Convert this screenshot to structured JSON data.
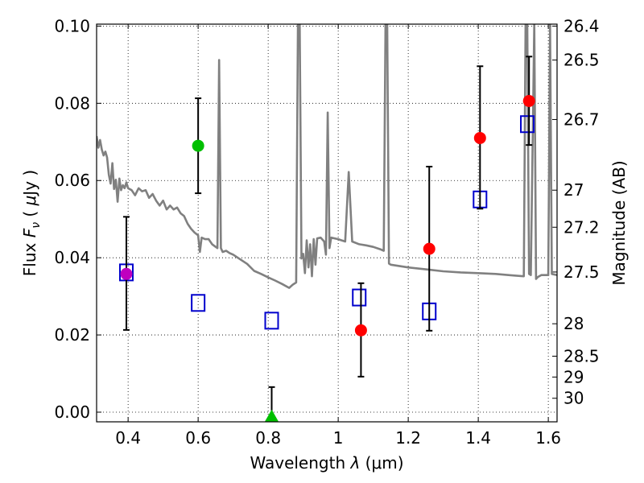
{
  "chart_data": {
    "type": "scatter",
    "xlabel": "Wavelength  λ (μm)",
    "ylabel": "Flux  F_ν  ( μJy )",
    "ylabel_parts": {
      "prefix": "Flux  ",
      "symbol": "F",
      "subscript": "ν",
      "unit_open": "  ( ",
      "mu": "μ",
      "unit": "Jy )"
    },
    "xlabel_parts": {
      "prefix": "Wavelength  ",
      "symbol": "λ",
      "unit": " (μm)"
    },
    "y2label": "Magnitude (AB)",
    "xlim": [
      0.31,
      1.625
    ],
    "ylim": [
      -0.0025,
      0.1005
    ],
    "grid": true,
    "x_ticks": [
      0.4,
      0.6,
      0.8,
      1.0,
      1.2,
      1.4,
      1.6
    ],
    "x_tick_labels": [
      "0.4",
      "0.6",
      "0.8",
      "1",
      "1.2",
      "1.4",
      "1.6"
    ],
    "y_ticks": [
      0.0,
      0.02,
      0.04,
      0.06,
      0.08,
      0.1
    ],
    "y_tick_labels": [
      "0.00",
      "0.02",
      "0.04",
      "0.06",
      "0.08",
      "0.10"
    ],
    "mag_ticks": [
      {
        "label": "26.4",
        "flux": 0.1
      },
      {
        "label": "26.5",
        "flux": 0.0912
      },
      {
        "label": "26.7",
        "flux": 0.0758
      },
      {
        "label": "27",
        "flux": 0.0575
      },
      {
        "label": "27.2",
        "flux": 0.0479
      },
      {
        "label": "27.5",
        "flux": 0.0363
      },
      {
        "label": "28",
        "flux": 0.0229
      },
      {
        "label": "28.5",
        "flux": 0.0145
      },
      {
        "label": "29",
        "flux": 0.0091
      },
      {
        "label": "30",
        "flux": 0.0036
      }
    ],
    "series": [
      {
        "name": "sed-model",
        "kind": "line",
        "color": "#808080",
        "points": [
          [
            0.31,
            0.0715
          ],
          [
            0.315,
            0.0685
          ],
          [
            0.32,
            0.0705
          ],
          [
            0.325,
            0.068
          ],
          [
            0.33,
            0.0665
          ],
          [
            0.335,
            0.0675
          ],
          [
            0.34,
            0.066
          ],
          [
            0.345,
            0.0615
          ],
          [
            0.35,
            0.0592
          ],
          [
            0.355,
            0.0645
          ],
          [
            0.36,
            0.0578
          ],
          [
            0.365,
            0.0602
          ],
          [
            0.37,
            0.0545
          ],
          [
            0.375,
            0.0605
          ],
          [
            0.38,
            0.0575
          ],
          [
            0.385,
            0.0588
          ],
          [
            0.39,
            0.058
          ],
          [
            0.395,
            0.0595
          ],
          [
            0.4,
            0.058
          ],
          [
            0.41,
            0.0575
          ],
          [
            0.42,
            0.0562
          ],
          [
            0.43,
            0.058
          ],
          [
            0.44,
            0.0572
          ],
          [
            0.45,
            0.0575
          ],
          [
            0.46,
            0.0555
          ],
          [
            0.47,
            0.0565
          ],
          [
            0.48,
            0.0548
          ],
          [
            0.49,
            0.0535
          ],
          [
            0.5,
            0.0548
          ],
          [
            0.51,
            0.0525
          ],
          [
            0.52,
            0.0535
          ],
          [
            0.53,
            0.0525
          ],
          [
            0.54,
            0.053
          ],
          [
            0.55,
            0.0515
          ],
          [
            0.56,
            0.0508
          ],
          [
            0.57,
            0.0488
          ],
          [
            0.58,
            0.0475
          ],
          [
            0.59,
            0.0465
          ],
          [
            0.6,
            0.0458
          ],
          [
            0.605,
            0.0415
          ],
          [
            0.61,
            0.0452
          ],
          [
            0.62,
            0.0448
          ],
          [
            0.63,
            0.0448
          ],
          [
            0.64,
            0.0435
          ],
          [
            0.65,
            0.0428
          ],
          [
            0.655,
            0.0425
          ],
          [
            0.66,
            0.0912
          ],
          [
            0.665,
            0.0425
          ],
          [
            0.67,
            0.0415
          ],
          [
            0.68,
            0.0418
          ],
          [
            0.69,
            0.0412
          ],
          [
            0.7,
            0.0408
          ],
          [
            0.72,
            0.0396
          ],
          [
            0.74,
            0.0384
          ],
          [
            0.76,
            0.0366
          ],
          [
            0.78,
            0.0358
          ],
          [
            0.8,
            0.0349
          ],
          [
            0.82,
            0.0341
          ],
          [
            0.84,
            0.0332
          ],
          [
            0.86,
            0.0322
          ],
          [
            0.87,
            0.033
          ],
          [
            0.88,
            0.0336
          ],
          [
            0.885,
            0.1005
          ],
          [
            0.89,
            0.1005
          ],
          [
            0.895,
            0.0398
          ],
          [
            0.9,
            0.041
          ],
          [
            0.905,
            0.036
          ],
          [
            0.91,
            0.0445
          ],
          [
            0.915,
            0.0375
          ],
          [
            0.92,
            0.0435
          ],
          [
            0.925,
            0.0352
          ],
          [
            0.93,
            0.0448
          ],
          [
            0.935,
            0.0382
          ],
          [
            0.94,
            0.045
          ],
          [
            0.95,
            0.0452
          ],
          [
            0.96,
            0.0442
          ],
          [
            0.965,
            0.0408
          ],
          [
            0.97,
            0.0776
          ],
          [
            0.975,
            0.0425
          ],
          [
            0.98,
            0.0452
          ],
          [
            1.0,
            0.0448
          ],
          [
            1.01,
            0.0445
          ],
          [
            1.02,
            0.0442
          ],
          [
            1.03,
            0.0622
          ],
          [
            1.04,
            0.0442
          ],
          [
            1.06,
            0.0435
          ],
          [
            1.08,
            0.0432
          ],
          [
            1.1,
            0.0428
          ],
          [
            1.12,
            0.0422
          ],
          [
            1.13,
            0.0418
          ],
          [
            1.135,
            0.1005
          ],
          [
            1.14,
            0.1005
          ],
          [
            1.145,
            0.0385
          ],
          [
            1.15,
            0.0382
          ],
          [
            1.2,
            0.0375
          ],
          [
            1.25,
            0.037
          ],
          [
            1.3,
            0.0365
          ],
          [
            1.35,
            0.0362
          ],
          [
            1.4,
            0.036
          ],
          [
            1.45,
            0.0358
          ],
          [
            1.5,
            0.0354
          ],
          [
            1.53,
            0.0352
          ],
          [
            1.535,
            0.1005
          ],
          [
            1.54,
            0.1005
          ],
          [
            1.545,
            0.0358
          ],
          [
            1.55,
            0.0355
          ],
          [
            1.56,
            0.1005
          ],
          [
            1.565,
            0.0345
          ],
          [
            1.57,
            0.035
          ],
          [
            1.58,
            0.0355
          ],
          [
            1.6,
            0.0355
          ],
          [
            1.605,
            0.1005
          ],
          [
            1.61,
            0.0358
          ],
          [
            1.625,
            0.0355
          ]
        ]
      },
      {
        "name": "model-bands",
        "kind": "open-square",
        "color": "#0000cc",
        "points": [
          {
            "x": 0.395,
            "y": 0.0362
          },
          {
            "x": 0.6,
            "y": 0.0283
          },
          {
            "x": 0.81,
            "y": 0.0237
          },
          {
            "x": 1.06,
            "y": 0.0297
          },
          {
            "x": 1.26,
            "y": 0.0261
          },
          {
            "x": 1.405,
            "y": 0.0551
          },
          {
            "x": 1.54,
            "y": 0.0746
          }
        ]
      },
      {
        "name": "observed",
        "kind": "points-with-errors",
        "points": [
          {
            "x": 0.395,
            "y": 0.0358,
            "err_lo": 0.0145,
            "err_hi": 0.0148,
            "color": "#bf00bf",
            "marker": "circle"
          },
          {
            "x": 0.6,
            "y": 0.069,
            "err_lo": 0.0123,
            "err_hi": 0.0123,
            "color": "#00bf00",
            "marker": "circle"
          },
          {
            "x": 0.81,
            "y": -0.001,
            "err_lo": 0.0,
            "err_hi": 0.0075,
            "color": "#00bf00",
            "marker": "triangle"
          },
          {
            "x": 1.065,
            "y": 0.0212,
            "err_lo": 0.012,
            "err_hi": 0.0122,
            "color": "#ff0000",
            "marker": "circle"
          },
          {
            "x": 1.26,
            "y": 0.0423,
            "err_lo": 0.0212,
            "err_hi": 0.0213,
            "color": "#ff0000",
            "marker": "circle"
          },
          {
            "x": 1.405,
            "y": 0.071,
            "err_lo": 0.0183,
            "err_hi": 0.0186,
            "color": "#ff0000",
            "marker": "circle"
          },
          {
            "x": 1.545,
            "y": 0.0806,
            "err_lo": 0.0114,
            "err_hi": 0.0115,
            "color": "#ff0000",
            "marker": "circle"
          }
        ]
      }
    ]
  }
}
